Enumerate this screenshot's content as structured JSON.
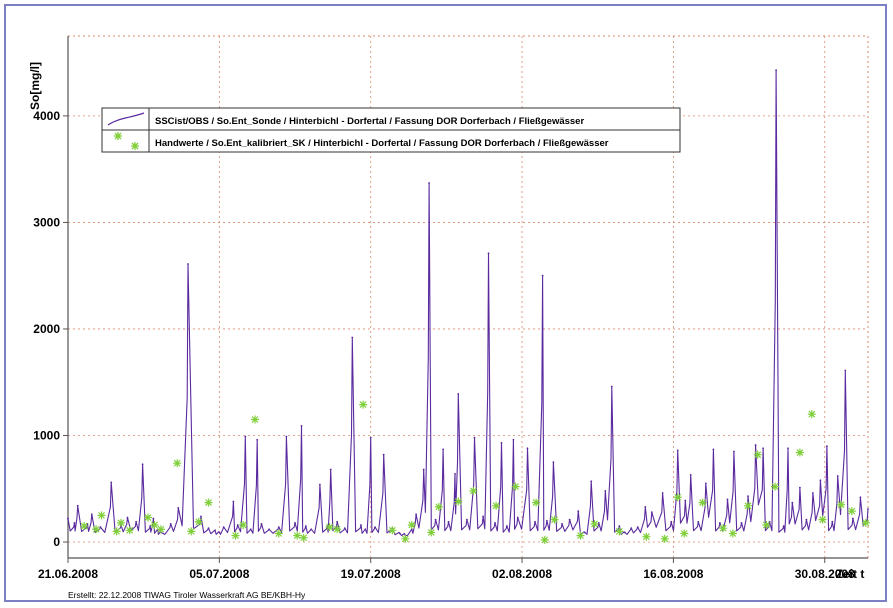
{
  "chart_data": {
    "type": "line",
    "ylabel": "So[mg/l]",
    "xlabel": "Zeit t",
    "ylim": [
      -150,
      4750
    ],
    "xlim_days": [
      0,
      74
    ],
    "y_ticks": [
      0,
      1000,
      2000,
      3000,
      4000
    ],
    "x_tick_labels": [
      "21.06.2008",
      "05.07.2008",
      "19.07.2008",
      "02.08.2008",
      "16.08.2008",
      "30.08.2008"
    ],
    "grid": true,
    "legend_position": "top-left",
    "colors": {
      "line": "#5a2a9e",
      "marker": "#7fcf3a",
      "grid": "#d98a6a",
      "axis": "#555555",
      "frame": "#7d7fc4"
    },
    "series": [
      {
        "name": "SSCist/OBS / So.Ent_Sonde / Hinterbichl - Dorfertal / Fassung DOR Dorferbach / Fließgewässer",
        "style": "line",
        "x": [
          0,
          0.6,
          0.9,
          1.8,
          2.2,
          3.0,
          4.0,
          4.9,
          5.5,
          6.3,
          6.9,
          7.6,
          7.9,
          8.3,
          8.6,
          9.5,
          10.2,
          11.1,
          12.3,
          13.0,
          13.6,
          14.0,
          14.4,
          15.3,
          15.7,
          16.4,
          16.9,
          17.5,
          17.9,
          18.6,
          19.5,
          20.2,
          21.0,
          21.6,
          22.0,
          22.5,
          23.3,
          24.0,
          24.3,
          24.9,
          25.6,
          26.3,
          27.1,
          27.5,
          28.0,
          28.4,
          29.2,
          30.0,
          30.7,
          31.2,
          31.8,
          32.2,
          32.9,
          33.4,
          34.0,
          34.7,
          35.2,
          35.8,
          36.1,
          36.9,
          37.6,
          38.4,
          38.9,
          39.5,
          40.1,
          40.6,
          41.2,
          41.6,
          42.5,
          43.2,
          43.9,
          44.3,
          44.9,
          45.7,
          46.4,
          47.2,
          47.8,
          48.4,
          49.1,
          49.7,
          50.3,
          51.0,
          51.5,
          52.1,
          52.7,
          53.4,
          54.0,
          55.0,
          55.8,
          56.4,
          57.1,
          57.6,
          58.3,
          59.0,
          59.7,
          60.3,
          61.0,
          61.6,
          62.3,
          62.9,
          63.6,
          64.3,
          64.9,
          65.5,
          66.2,
          66.6,
          67.0,
          67.7,
          68.3,
          68.9,
          69.6,
          70.2,
          70.7,
          71.2,
          71.9,
          72.6,
          73.3,
          74.0
        ],
        "values": [
          220,
          180,
          340,
          170,
          260,
          140,
          560,
          160,
          230,
          190,
          730,
          150,
          220,
          120,
          90,
          170,
          320,
          2610,
          240,
          130,
          110,
          90,
          140,
          380,
          160,
          990,
          120,
          960,
          170,
          120,
          140,
          990,
          180,
          1090,
          150,
          120,
          540,
          150,
          680,
          190,
          130,
          1920,
          160,
          120,
          980,
          140,
          820,
          130,
          80,
          60,
          120,
          260,
          680,
          3370,
          210,
          870,
          190,
          640,
          1390,
          210,
          980,
          240,
          2710,
          180,
          930,
          150,
          960,
          230,
          880,
          190,
          2500,
          200,
          750,
          170,
          210,
          290,
          90,
          570,
          180,
          480,
          1460,
          150,
          90,
          130,
          140,
          330,
          280,
          460,
          190,
          860,
          390,
          630,
          190,
          550,
          870,
          180,
          400,
          850,
          180,
          430,
          910,
          880,
          190,
          4430,
          150,
          880,
          370,
          510,
          210,
          460,
          580,
          900,
          190,
          620,
          1610,
          220,
          420,
          310
        ]
      },
      {
        "name": "Handwerte / So.Ent_kalibriert_SK / Hinterbichl - Dorfertal / Fassung DOR Dorferbach / Fließgewässer",
        "style": "markers",
        "x": [
          1.5,
          2.6,
          3.1,
          4.5,
          4.9,
          5.7,
          7.4,
          8.0,
          8.6,
          10.1,
          11.4,
          12.1,
          13.0,
          15.5,
          16.2,
          17.3,
          19.5,
          21.2,
          21.8,
          24.2,
          24.9,
          27.3,
          30.0,
          31.2,
          31.8,
          33.6,
          34.3,
          36.1,
          37.5,
          39.6,
          41.4,
          43.3,
          44.1,
          45.0,
          47.4,
          48.7,
          51.0,
          53.5,
          55.2,
          56.4,
          57.0,
          58.7,
          60.6,
          61.5,
          62.9,
          63.8,
          64.6,
          65.4,
          67.7,
          68.8,
          69.8,
          71.5,
          72.5,
          73.8
        ],
        "values": [
          150,
          120,
          250,
          100,
          180,
          110,
          230,
          160,
          120,
          740,
          100,
          190,
          370,
          60,
          160,
          1150,
          80,
          60,
          40,
          140,
          120,
          1290,
          110,
          30,
          160,
          90,
          330,
          380,
          480,
          340,
          520,
          370,
          20,
          210,
          60,
          170,
          100,
          50,
          30,
          420,
          80,
          370,
          130,
          80,
          340,
          820,
          160,
          520,
          840,
          1200,
          210,
          350,
          290,
          180
        ]
      }
    ]
  },
  "footer": {
    "created": "Erstellt: 22.12.2008 TIWAG Tiroler Wasserkraft AG BE/KBH-Hy"
  }
}
